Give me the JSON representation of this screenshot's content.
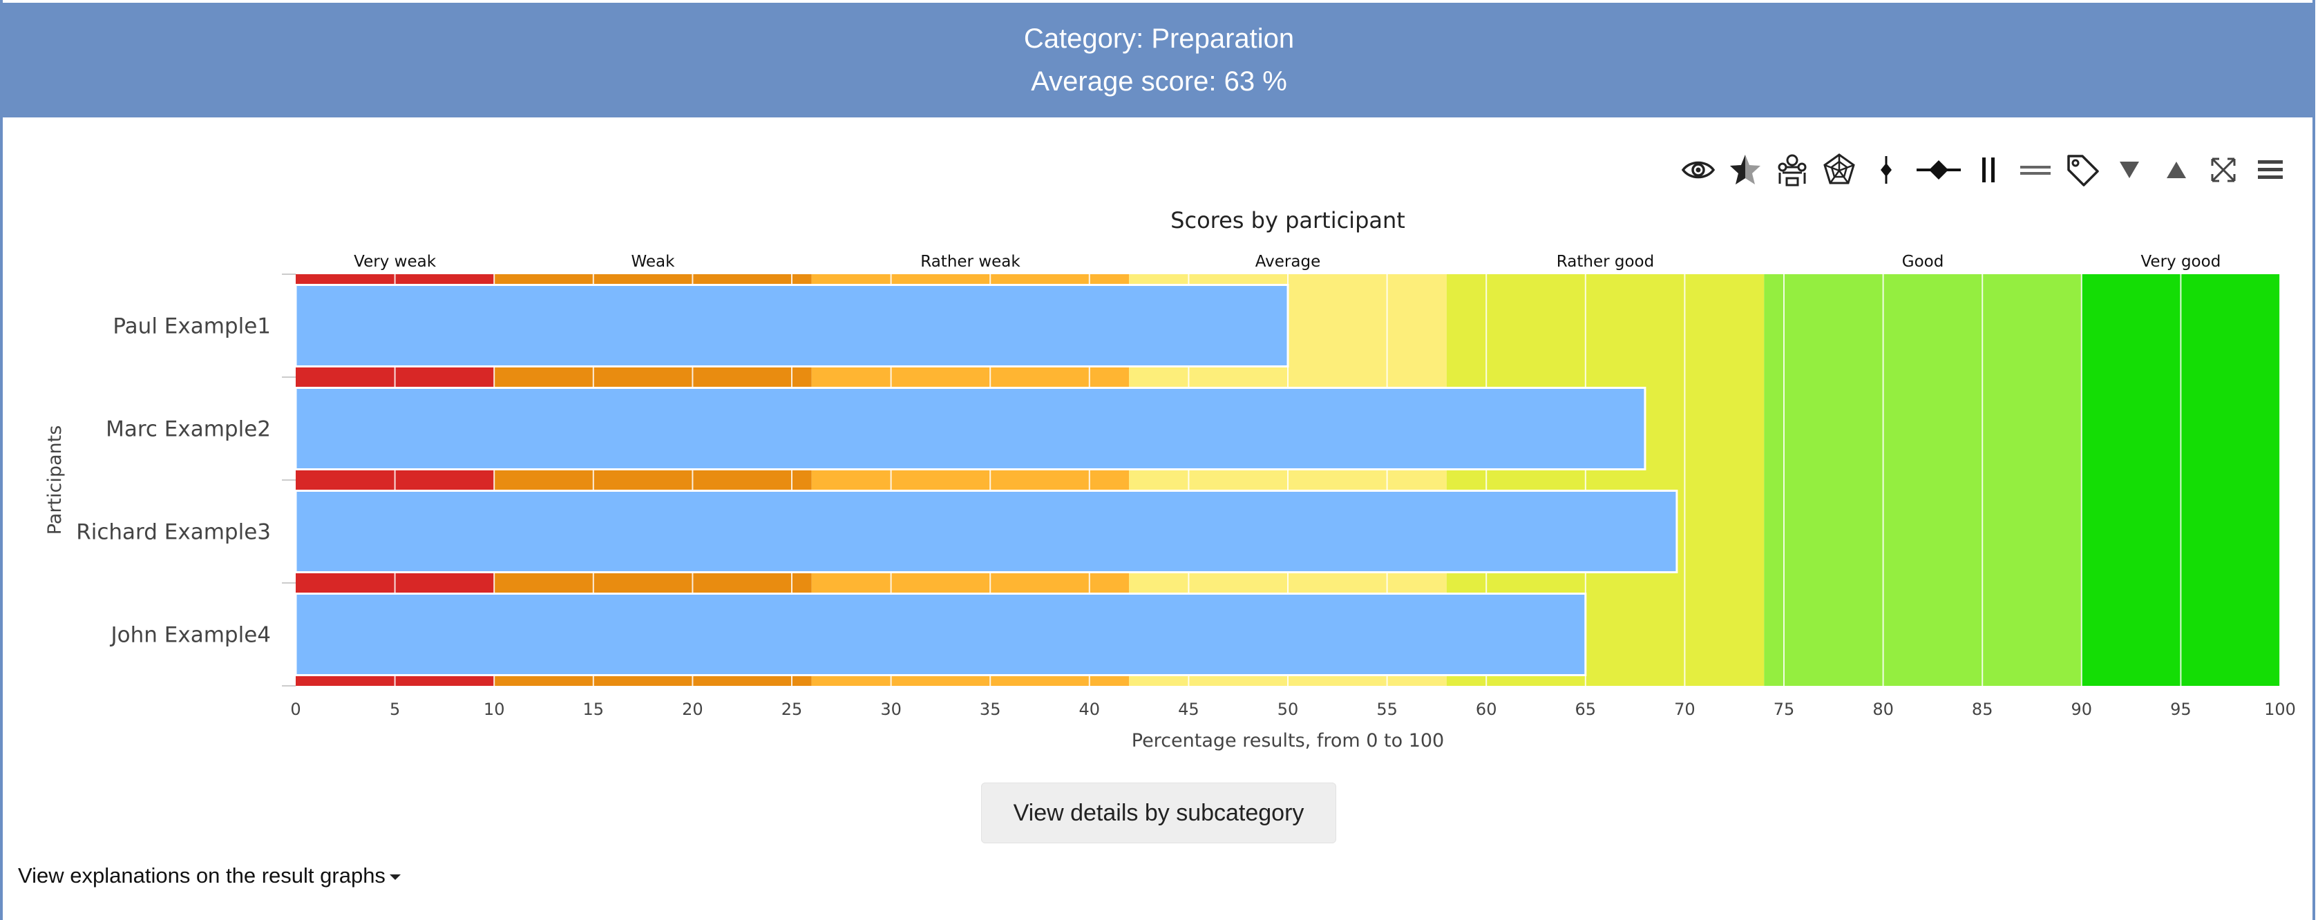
{
  "header": {
    "title": "Category: Preparation",
    "subtitle": "Average score: 63 %"
  },
  "toolbar": {
    "tools": [
      {
        "name": "eye-icon"
      },
      {
        "name": "star-half-icon"
      },
      {
        "name": "group-icon"
      },
      {
        "name": "spider-web-icon"
      },
      {
        "name": "diamond-small-icon"
      },
      {
        "name": "diamond-line-icon"
      },
      {
        "name": "pause-bars-icon"
      },
      {
        "name": "equals-bars-icon"
      },
      {
        "name": "tag-icon"
      },
      {
        "name": "triangle-down-icon"
      },
      {
        "name": "triangle-up-icon"
      },
      {
        "name": "fullscreen-icon"
      },
      {
        "name": "menu-icon"
      }
    ]
  },
  "chart_data": {
    "type": "bar",
    "orientation": "horizontal",
    "title": "Scores by participant",
    "xlabel": "Percentage results, from 0 to 100",
    "ylabel": "Participants",
    "xlim": [
      0,
      100
    ],
    "xticks": [
      0,
      5,
      10,
      15,
      20,
      25,
      30,
      35,
      40,
      45,
      50,
      55,
      60,
      65,
      70,
      75,
      80,
      85,
      90,
      95,
      100
    ],
    "categories": [
      "Paul Example1",
      "Marc Example2",
      "Richard Example3",
      "John Example4"
    ],
    "values": [
      50,
      68,
      69.6,
      65
    ],
    "bar_color": "#7cb9ff",
    "bands": [
      {
        "label": "Very weak",
        "from": 0,
        "to": 10,
        "color": "#d82726"
      },
      {
        "label": "Weak",
        "from": 10,
        "to": 26,
        "color": "#e98c10"
      },
      {
        "label": "Rather weak",
        "from": 26,
        "to": 42,
        "color": "#ffb532"
      },
      {
        "label": "Average",
        "from": 42,
        "to": 58,
        "color": "#fdee7a"
      },
      {
        "label": "Rather good",
        "from": 58,
        "to": 74,
        "color": "#e4ee40"
      },
      {
        "label": "Good",
        "from": 74,
        "to": 90,
        "color": "#94ee40"
      },
      {
        "label": "Very good",
        "from": 90,
        "to": 100,
        "color": "#14dd05"
      }
    ],
    "grid": true
  },
  "actions": {
    "details_button": "View details by subcategory",
    "explanations_link": "View explanations on the result graphs"
  }
}
